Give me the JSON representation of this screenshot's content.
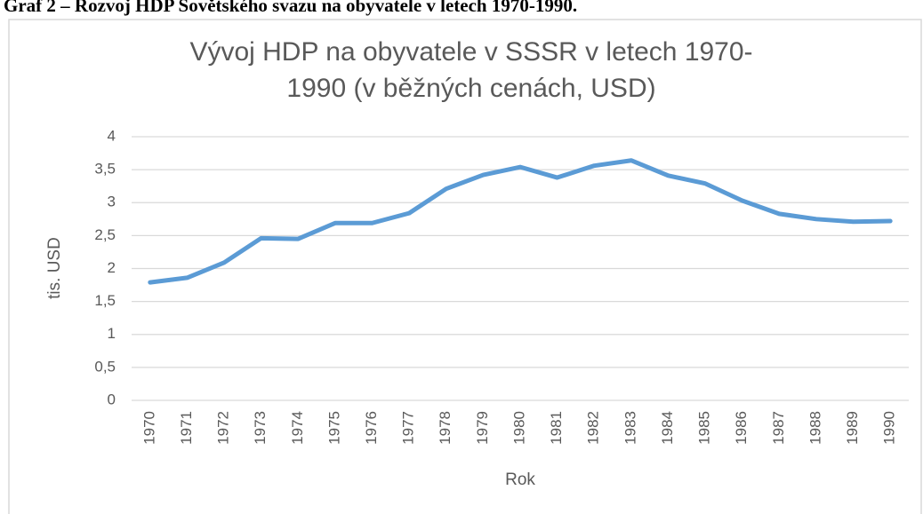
{
  "caption": "Graf 2 – Rozvoj HDP Sovětského svazu na obyvatele v letech 1970-1990.",
  "chart_data": {
    "type": "line",
    "title": [
      "Vývoj HDP na obyvatele v SSSR v letech 1970-",
      "1990 (v běžných cenách, USD)"
    ],
    "x_label": "Rok",
    "y_label": "tis. USD",
    "categories": [
      "1970",
      "1971",
      "1972",
      "1973",
      "1974",
      "1975",
      "1976",
      "1977",
      "1978",
      "1979",
      "1980",
      "1981",
      "1982",
      "1983",
      "1984",
      "1985",
      "1986",
      "1987",
      "1988",
      "1989",
      "1990"
    ],
    "values": [
      1.79,
      1.86,
      2.09,
      2.46,
      2.45,
      2.69,
      2.69,
      2.84,
      3.21,
      3.42,
      3.54,
      3.38,
      3.56,
      3.64,
      3.41,
      3.29,
      3.03,
      2.83,
      2.75,
      2.71,
      2.72
    ],
    "color": "#5b9bd5",
    "ylim": [
      0,
      4
    ],
    "yticks": [
      0,
      {
        "value": 0.5,
        "label": "0,5"
      },
      1,
      {
        "value": 1.5,
        "label": "1,5"
      },
      2,
      {
        "value": 2.5,
        "label": "2,5"
      },
      3,
      {
        "value": 3.5,
        "label": "3,5"
      },
      4
    ],
    "grid": true
  }
}
